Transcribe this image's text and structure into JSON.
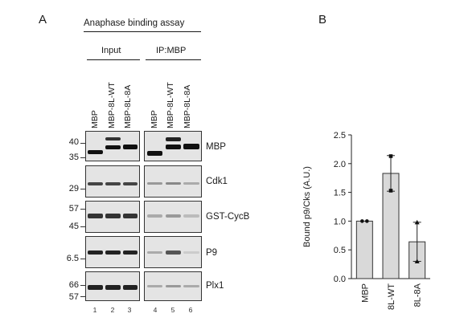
{
  "panel_a": {
    "letter": "A",
    "title": "Anaphase binding assay",
    "group_input": "Input",
    "group_ip": "IP:MBP",
    "lane_labels_input": [
      "MBP",
      "MBP-8L-WT",
      "MBP-8L-8A"
    ],
    "lane_labels_ip": [
      "MBP",
      "MBP-8L-WT",
      "MBP-8L-8A"
    ],
    "blots": [
      {
        "label": "MBP",
        "markers": [
          "40",
          "35"
        ]
      },
      {
        "label": "Cdk1",
        "markers": [
          "29"
        ]
      },
      {
        "label": "GST-CycB",
        "markers": [
          "57",
          "45"
        ]
      },
      {
        "label": "P9",
        "markers": [
          "6.5"
        ]
      },
      {
        "label": "Plx1",
        "markers": [
          "66",
          "57"
        ]
      }
    ],
    "lane_numbers": [
      "1",
      "2",
      "3",
      "4",
      "5",
      "6"
    ]
  },
  "panel_b": {
    "letter": "B"
  },
  "chart_data": {
    "type": "bar",
    "categories": [
      "MBP",
      "8L-WT",
      "8L-8A"
    ],
    "values": [
      1.0,
      1.83,
      0.64
    ],
    "errors": [
      0.0,
      0.31,
      0.34
    ],
    "points": [
      [
        1.0,
        1.0
      ],
      [
        1.53,
        2.13
      ],
      [
        0.3,
        0.98
      ]
    ],
    "ylabel": "Bound p9/Cks (A.U.)",
    "ylim": [
      0,
      2.5
    ],
    "yticks": [
      "0.0",
      "0.5",
      "1.0",
      "1.5",
      "2.0",
      "2.5"
    ]
  }
}
